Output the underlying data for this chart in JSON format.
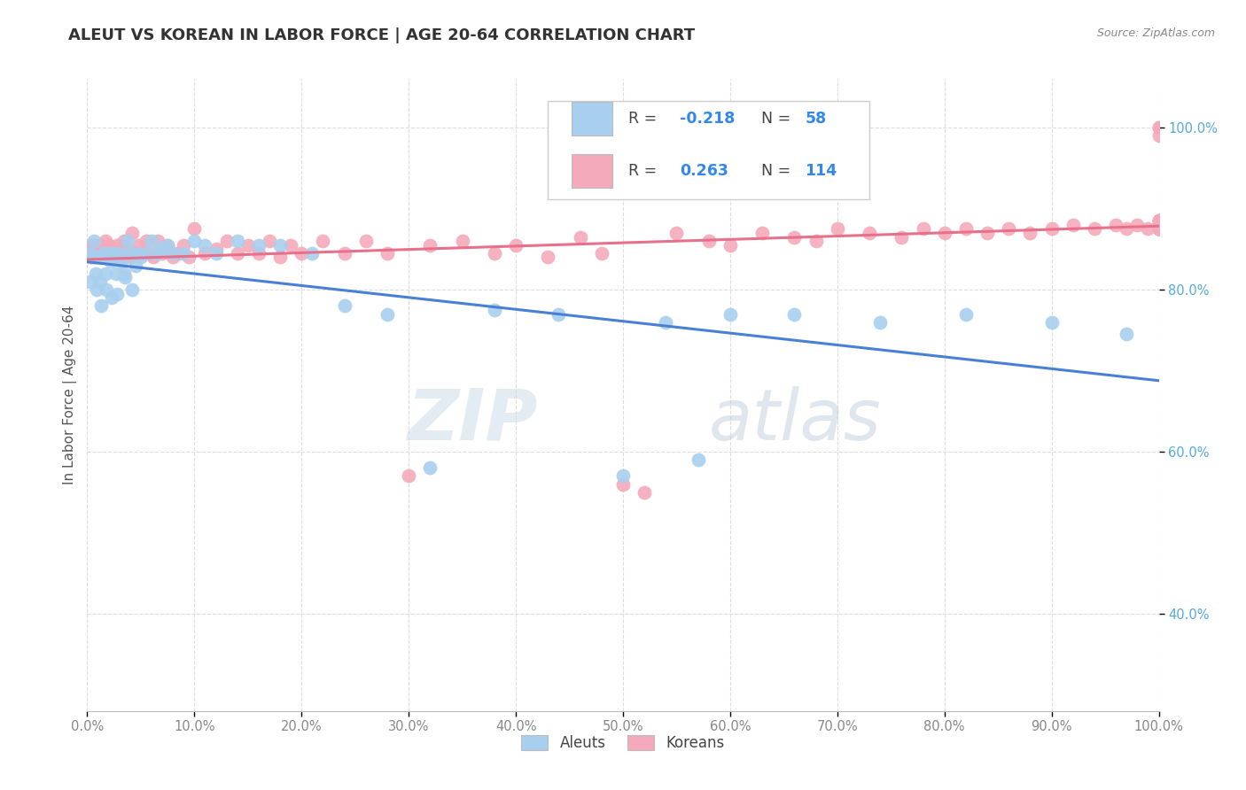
{
  "title": "ALEUT VS KOREAN IN LABOR FORCE | AGE 20-64 CORRELATION CHART",
  "source": "Source: ZipAtlas.com",
  "ylabel": "In Labor Force | Age 20-64",
  "aleut_R": -0.218,
  "aleut_N": 58,
  "korean_R": 0.263,
  "korean_N": 114,
  "aleut_color": "#A8CFEE",
  "korean_color": "#F4AABB",
  "aleut_line_color": "#4A80D4",
  "korean_line_color": "#E8708A",
  "background_color": "#FFFFFF",
  "watermark_zip": "ZIP",
  "watermark_atlas": "atlas",
  "ytick_color": "#55AADD",
  "xtick_color": "#888888",
  "xlim": [
    0.0,
    1.0
  ],
  "ylim": [
    0.28,
    1.06
  ],
  "yticks": [
    0.4,
    0.6,
    0.8,
    1.0
  ],
  "xticks": [
    0.0,
    0.1,
    0.2,
    0.3,
    0.4,
    0.5,
    0.6,
    0.7,
    0.8,
    0.9,
    1.0
  ],
  "aleut_x": [
    0.002,
    0.003,
    0.005,
    0.006,
    0.007,
    0.008,
    0.009,
    0.01,
    0.012,
    0.013,
    0.015,
    0.016,
    0.017,
    0.018,
    0.02,
    0.022,
    0.023,
    0.025,
    0.027,
    0.028,
    0.03,
    0.032,
    0.034,
    0.035,
    0.038,
    0.04,
    0.042,
    0.045,
    0.048,
    0.05,
    0.055,
    0.06,
    0.065,
    0.07,
    0.075,
    0.08,
    0.09,
    0.1,
    0.11,
    0.12,
    0.14,
    0.16,
    0.18,
    0.21,
    0.24,
    0.28,
    0.32,
    0.38,
    0.44,
    0.5,
    0.54,
    0.57,
    0.6,
    0.66,
    0.74,
    0.82,
    0.9,
    0.97
  ],
  "aleut_y": [
    0.845,
    0.81,
    0.84,
    0.86,
    0.84,
    0.82,
    0.8,
    0.84,
    0.81,
    0.78,
    0.845,
    0.84,
    0.82,
    0.8,
    0.845,
    0.835,
    0.79,
    0.845,
    0.82,
    0.795,
    0.845,
    0.835,
    0.82,
    0.815,
    0.86,
    0.845,
    0.8,
    0.83,
    0.845,
    0.84,
    0.845,
    0.86,
    0.845,
    0.85,
    0.855,
    0.845,
    0.845,
    0.86,
    0.855,
    0.845,
    0.86,
    0.855,
    0.855,
    0.845,
    0.78,
    0.77,
    0.58,
    0.775,
    0.77,
    0.57,
    0.76,
    0.59,
    0.77,
    0.77,
    0.76,
    0.77,
    0.76,
    0.745
  ],
  "korean_x": [
    0.001,
    0.002,
    0.003,
    0.004,
    0.005,
    0.006,
    0.007,
    0.008,
    0.009,
    0.01,
    0.011,
    0.012,
    0.013,
    0.014,
    0.015,
    0.016,
    0.017,
    0.018,
    0.019,
    0.02,
    0.022,
    0.024,
    0.026,
    0.028,
    0.03,
    0.032,
    0.034,
    0.036,
    0.038,
    0.04,
    0.042,
    0.045,
    0.048,
    0.05,
    0.055,
    0.058,
    0.062,
    0.066,
    0.07,
    0.075,
    0.08,
    0.085,
    0.09,
    0.095,
    0.1,
    0.11,
    0.12,
    0.13,
    0.14,
    0.15,
    0.16,
    0.17,
    0.18,
    0.19,
    0.2,
    0.22,
    0.24,
    0.26,
    0.28,
    0.3,
    0.32,
    0.35,
    0.38,
    0.4,
    0.43,
    0.46,
    0.48,
    0.5,
    0.52,
    0.55,
    0.58,
    0.6,
    0.63,
    0.66,
    0.68,
    0.7,
    0.73,
    0.76,
    0.78,
    0.8,
    0.82,
    0.84,
    0.86,
    0.88,
    0.9,
    0.92,
    0.94,
    0.96,
    0.97,
    0.98,
    0.99,
    1.0,
    1.0,
    1.0,
    1.0,
    1.0,
    1.0,
    1.0,
    1.0,
    1.0,
    1.0,
    1.0,
    1.0,
    1.0,
    1.0,
    1.0,
    1.0,
    1.0,
    1.0,
    1.0,
    1.0,
    1.0,
    1.0,
    1.0
  ],
  "korean_y": [
    0.85,
    0.84,
    0.855,
    0.84,
    0.85,
    0.84,
    0.855,
    0.84,
    0.845,
    0.84,
    0.855,
    0.845,
    0.84,
    0.855,
    0.845,
    0.84,
    0.86,
    0.845,
    0.84,
    0.855,
    0.845,
    0.84,
    0.85,
    0.855,
    0.845,
    0.84,
    0.86,
    0.85,
    0.845,
    0.84,
    0.87,
    0.845,
    0.855,
    0.845,
    0.86,
    0.845,
    0.84,
    0.86,
    0.845,
    0.855,
    0.84,
    0.845,
    0.855,
    0.84,
    0.875,
    0.845,
    0.85,
    0.86,
    0.845,
    0.855,
    0.845,
    0.86,
    0.84,
    0.855,
    0.845,
    0.86,
    0.845,
    0.86,
    0.845,
    0.57,
    0.855,
    0.86,
    0.845,
    0.855,
    0.84,
    0.865,
    0.845,
    0.56,
    0.55,
    0.87,
    0.86,
    0.855,
    0.87,
    0.865,
    0.86,
    0.875,
    0.87,
    0.865,
    0.875,
    0.87,
    0.875,
    0.87,
    0.875,
    0.87,
    0.875,
    0.88,
    0.875,
    0.88,
    0.875,
    0.88,
    0.875,
    0.88,
    0.875,
    0.885,
    0.875,
    0.88,
    0.875,
    0.99,
    0.885,
    0.875,
    1.0,
    0.885,
    0.875,
    1.0,
    0.885,
    0.875,
    0.88,
    0.875,
    0.88,
    0.875,
    0.88,
    0.875,
    0.88,
    0.875
  ]
}
